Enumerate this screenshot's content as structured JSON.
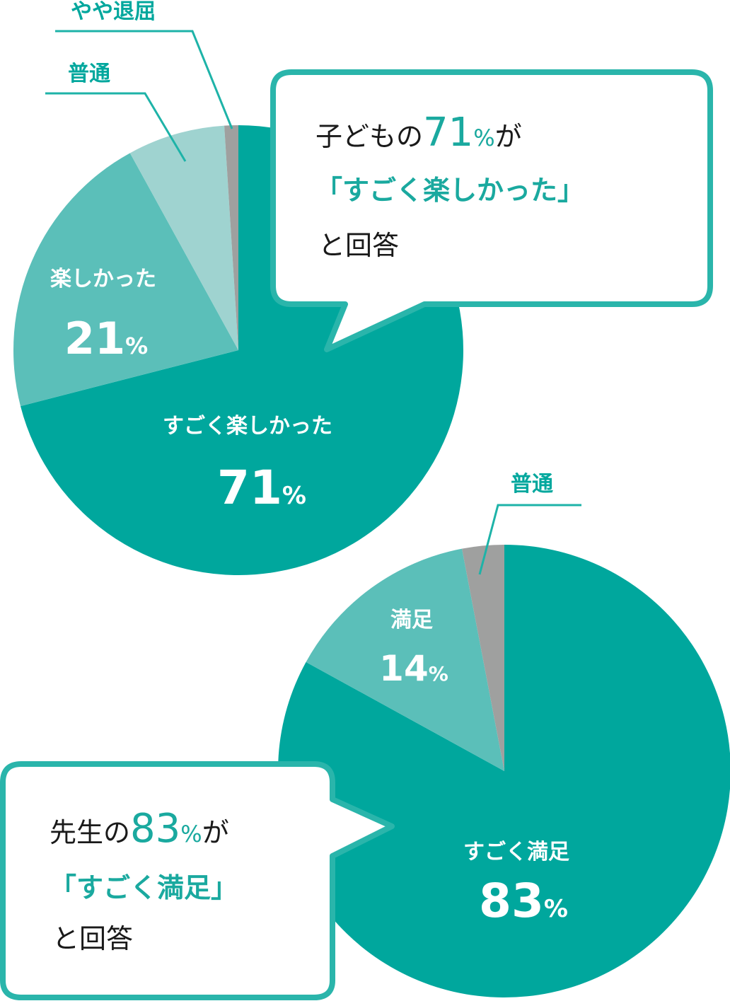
{
  "colors": {
    "strong": "#00a79d",
    "medium": "#5bbfb9",
    "light": "#9fd3d0",
    "gray": "#9fa09f",
    "accent": "#1aa99f"
  },
  "chart_data": [
    {
      "type": "pie",
      "id": "children",
      "slices": [
        {
          "label": "すごく楽しかった",
          "value": 71,
          "value_text": "71",
          "color": "#00a79d"
        },
        {
          "label": "楽しかった",
          "value": 21,
          "value_text": "21",
          "color": "#5bbfb9"
        },
        {
          "label": "普通",
          "value": 7,
          "value_text": "",
          "color": "#9fd3d0"
        },
        {
          "label": "やや退屈",
          "value": 1,
          "value_text": "",
          "color": "#9fa09f"
        }
      ],
      "percent_sign": "%"
    },
    {
      "type": "pie",
      "id": "teachers",
      "slices": [
        {
          "label": "すごく満足",
          "value": 83,
          "value_text": "83",
          "color": "#00a79d"
        },
        {
          "label": "満足",
          "value": 14,
          "value_text": "14",
          "color": "#5bbfb9"
        },
        {
          "label": "普通",
          "value": 3,
          "value_text": "",
          "color": "#9fa09f"
        }
      ],
      "percent_sign": "%"
    }
  ],
  "callouts": {
    "children": {
      "line1_prefix": "子どもの",
      "line1_number": "71",
      "line1_percent": "%",
      "line1_suffix": "が",
      "line2": "「すごく楽しかった」",
      "line3": "と回答"
    },
    "teachers": {
      "line1_prefix": "先生の",
      "line1_number": "83",
      "line1_percent": "%",
      "line1_suffix": "が",
      "line2": "「すごく満足」",
      "line3": "と回答"
    }
  }
}
